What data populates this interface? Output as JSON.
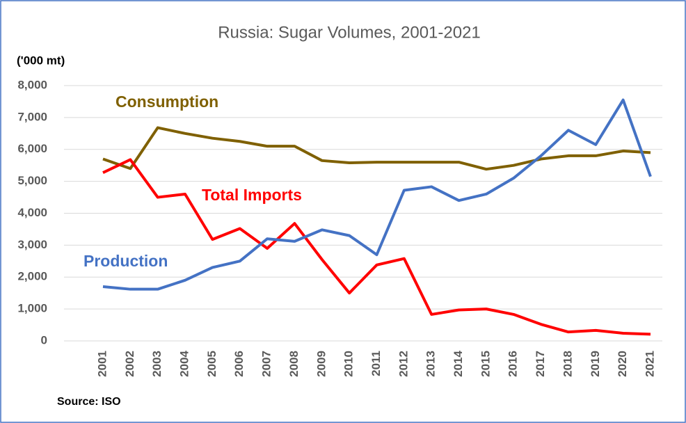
{
  "chart_data": {
    "type": "line",
    "title": "Russia: Sugar Volumes, 2001-2021",
    "y_label": "('000 mt)",
    "source": "Source: ISO",
    "categories": [
      "2001",
      "2002",
      "2003",
      "2004",
      "2005",
      "2006",
      "2007",
      "2008",
      "2009",
      "2010",
      "2011",
      "2012",
      "2013",
      "2014",
      "2015",
      "2016",
      "2017",
      "2018",
      "2019",
      "2020",
      "2021"
    ],
    "series": [
      {
        "name": "Consumption",
        "color": "#7f6000",
        "values": [
          5700,
          5400,
          6680,
          6500,
          6350,
          6250,
          6100,
          6100,
          5650,
          5580,
          5600,
          5600,
          5600,
          5600,
          5380,
          5500,
          5700,
          5800,
          5800,
          5950,
          5900
        ]
      },
      {
        "name": "Total Imports",
        "color": "#ff0000",
        "values": [
          5270,
          5680,
          4500,
          4600,
          3180,
          3520,
          2900,
          3680,
          2550,
          1500,
          2380,
          2580,
          830,
          970,
          1000,
          830,
          520,
          280,
          330,
          240,
          210
        ]
      },
      {
        "name": "Production",
        "color": "#4472c4",
        "values": [
          1700,
          1620,
          1620,
          1900,
          2300,
          2500,
          3200,
          3120,
          3480,
          3300,
          2700,
          4720,
          4830,
          4400,
          4600,
          5100,
          5800,
          6600,
          6150,
          7550,
          5150
        ]
      }
    ],
    "ylim": [
      0,
      8000
    ],
    "yticks": [
      0,
      {
        "value": 1000,
        "label": "1,000"
      },
      {
        "value": 2000,
        "label": "2,000"
      },
      {
        "value": 3000,
        "label": "3,000"
      },
      {
        "value": 4000,
        "label": "4,000"
      },
      {
        "value": 5000,
        "label": "5,000"
      },
      {
        "value": 6000,
        "label": "6,000"
      },
      {
        "value": 7000,
        "label": "7,000"
      },
      {
        "value": 8000,
        "label": "8,000"
      }
    ],
    "grid": true
  }
}
